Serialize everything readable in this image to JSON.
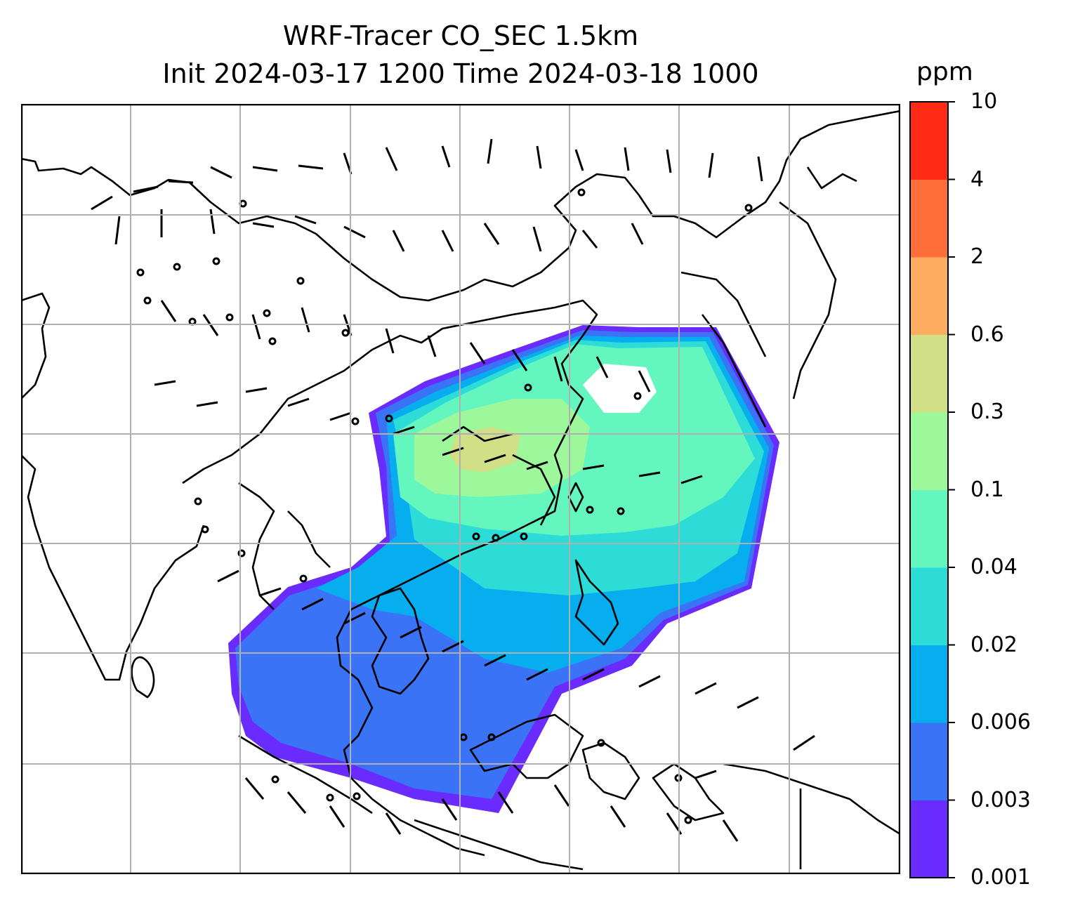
{
  "title": {
    "line1": "WRF-Tracer CO_SEC 1.5km",
    "line2": "Init 2024-03-17 1200 Time 2024-03-18 1000"
  },
  "colorbar": {
    "unit": "ppm",
    "levels": [
      "0.001",
      "0.003",
      "0.006",
      "0.02",
      "0.04",
      "0.1",
      "0.3",
      "0.6",
      "2",
      "4",
      "10"
    ],
    "colors": [
      "#6a2bff",
      "#3a73f5",
      "#06aef0",
      "#2ddcd6",
      "#64f6bf",
      "#9cf89a",
      "#d1df86",
      "#fcad5f",
      "#fe6e3a",
      "#ff2b17"
    ]
  },
  "map": {
    "coastline_color": "#000000",
    "gridline_color": "#b0b0b0",
    "frame_color": "#000000"
  }
}
